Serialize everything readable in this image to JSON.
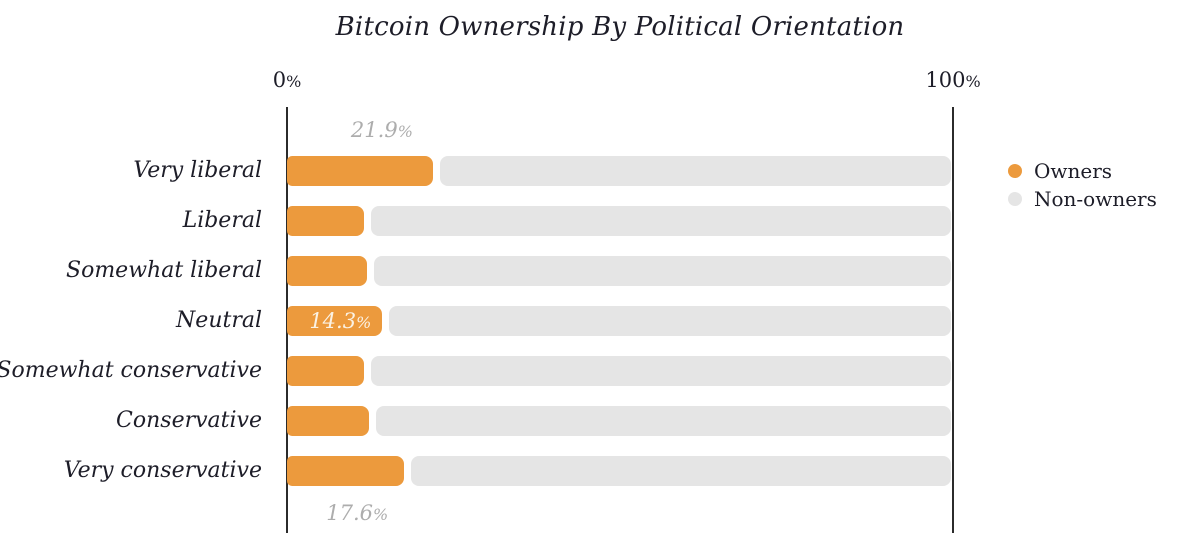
{
  "chart_data": {
    "type": "bar",
    "orientation": "horizontal",
    "title": "Bitcoin Ownership By Political Orientation",
    "categories": [
      "Very liberal",
      "Liberal",
      "Somewhat liberal",
      "Neutral",
      "Somewhat conservative",
      "Conservative",
      "Very conservative"
    ],
    "series": [
      {
        "name": "Owners",
        "color": "#EC9A3D",
        "values": [
          21.9,
          11.6,
          12.0,
          14.3,
          11.6,
          12.3,
          17.6
        ]
      },
      {
        "name": "Non-owners",
        "color": "#E5E5E5",
        "values": [
          78.1,
          88.4,
          88.0,
          85.7,
          88.4,
          87.7,
          82.4
        ]
      }
    ],
    "xlim": [
      0,
      100
    ],
    "xtick_labels": [
      "0%",
      "100%"
    ],
    "grid": "off",
    "legend_position": "right",
    "annotations": [
      {
        "row": 0,
        "text": "21.9%",
        "position": "above"
      },
      {
        "row": 3,
        "text": "14.3%",
        "position": "inside"
      },
      {
        "row": 6,
        "text": "17.6%",
        "position": "below"
      }
    ],
    "colors": {
      "axis": "#2b2b2b",
      "label_dark": "#1d1d28",
      "label_muted": "#adadad",
      "inside_label": "#fbf2e4",
      "background": "#ffffff"
    }
  }
}
